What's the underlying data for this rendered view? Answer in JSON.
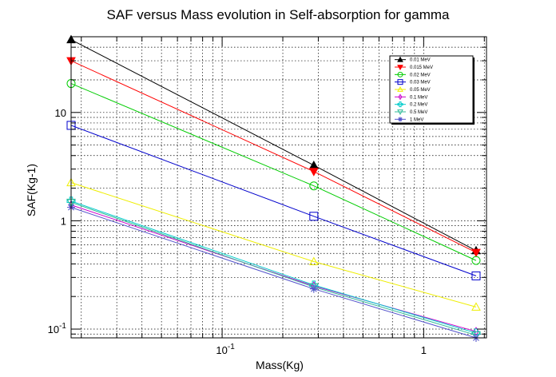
{
  "chart_data": {
    "type": "line",
    "title": "SAF versus Mass evolution in Self-absorption for gamma",
    "xlabel": "Mass(Kg)",
    "ylabel": "SAF(Kg-1)",
    "xscale": "log",
    "yscale": "log",
    "xlim": [
      0.0178,
      2.05
    ],
    "ylim": [
      0.083,
      50
    ],
    "grid": true,
    "legend_position": "top-right",
    "x_tick_labels": [
      {
        "value": 0.1,
        "label": "10^{-1}"
      },
      {
        "value": 1,
        "label": "1"
      }
    ],
    "y_tick_labels": [
      {
        "value": 0.1,
        "label": "10^{-1}"
      },
      {
        "value": 1,
        "label": "1"
      },
      {
        "value": 10,
        "label": "10"
      }
    ],
    "x": [
      0.0178,
      0.285,
      1.82
    ],
    "series": [
      {
        "name": "0.01 MeV",
        "color": "#000000",
        "marker": "triangle-up",
        "fill": true,
        "values": [
          47,
          3.25,
          0.53
        ]
      },
      {
        "name": "0.015 MeV",
        "color": "#ff0000",
        "marker": "triangle-down",
        "fill": true,
        "values": [
          30,
          2.85,
          0.51
        ]
      },
      {
        "name": "0.02 MeV",
        "color": "#00cc00",
        "marker": "circle",
        "fill": false,
        "values": [
          18.5,
          2.1,
          0.43
        ]
      },
      {
        "name": "0.03 MeV",
        "color": "#0000cc",
        "marker": "square",
        "fill": false,
        "values": [
          7.6,
          1.1,
          0.31
        ]
      },
      {
        "name": "0.05 MeV",
        "color": "#eeee00",
        "marker": "triangle-up",
        "fill": false,
        "values": [
          2.25,
          0.42,
          0.16
        ]
      },
      {
        "name": "0.1 MeV",
        "color": "#cc00cc",
        "marker": "diamond",
        "fill": false,
        "values": [
          1.4,
          0.25,
          0.095
        ]
      },
      {
        "name": "0.2 MeV",
        "color": "#00cccc",
        "marker": "cross",
        "fill": false,
        "values": [
          1.52,
          0.255,
          0.092
        ]
      },
      {
        "name": "0.5 MeV",
        "color": "#33bb99",
        "marker": "triangle-down",
        "fill": false,
        "values": [
          1.48,
          0.245,
          0.088
        ]
      },
      {
        "name": "1 MeV",
        "color": "#5555cc",
        "marker": "star",
        "fill": false,
        "values": [
          1.33,
          0.235,
          0.083
        ]
      }
    ]
  }
}
